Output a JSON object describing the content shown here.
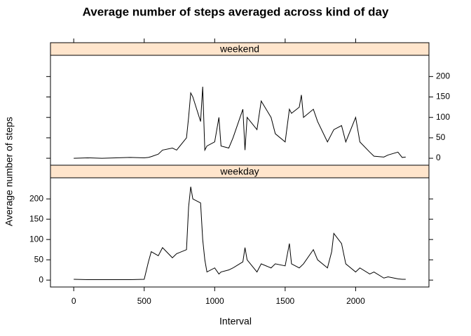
{
  "chart_data": {
    "type": "line",
    "title": "Average number of steps averaged across kind of day",
    "xlabel": "Interval",
    "ylabel": "Average number of steps",
    "x": [
      0,
      100,
      200,
      300,
      400,
      500,
      530,
      550,
      600,
      630,
      700,
      730,
      800,
      815,
      830,
      845,
      900,
      915,
      930,
      945,
      1000,
      1030,
      1045,
      1100,
      1130,
      1200,
      1215,
      1230,
      1300,
      1330,
      1400,
      1430,
      1500,
      1530,
      1545,
      1600,
      1615,
      1630,
      1700,
      1730,
      1800,
      1830,
      1845,
      1900,
      1930,
      2000,
      2015,
      2030,
      2100,
      2130,
      2200,
      2230,
      2300,
      2330,
      2355
    ],
    "series": [
      {
        "name": "weekend",
        "color": "#000000",
        "strip_color": "#ffe5cc",
        "values": [
          0,
          1,
          0,
          1,
          2,
          1,
          2,
          4,
          10,
          20,
          25,
          20,
          50,
          100,
          160,
          150,
          90,
          175,
          20,
          30,
          40,
          100,
          30,
          25,
          50,
          120,
          20,
          100,
          70,
          140,
          100,
          60,
          40,
          120,
          110,
          125,
          155,
          100,
          120,
          90,
          40,
          60,
          70,
          80,
          40,
          100,
          70,
          40,
          15,
          5,
          3,
          8,
          15,
          2,
          3
        ]
      },
      {
        "name": "weekday",
        "color": "#000000",
        "strip_color": "#ffe5cc",
        "values": [
          2,
          1,
          1,
          1,
          1,
          2,
          45,
          70,
          60,
          80,
          55,
          65,
          75,
          180,
          230,
          200,
          190,
          100,
          50,
          20,
          30,
          15,
          20,
          25,
          30,
          45,
          80,
          50,
          20,
          40,
          30,
          40,
          35,
          90,
          40,
          30,
          35,
          40,
          75,
          50,
          30,
          70,
          115,
          90,
          40,
          20,
          25,
          30,
          15,
          20,
          5,
          8,
          3,
          2,
          2
        ]
      }
    ],
    "xlim": [
      -165,
      2520
    ],
    "xticks": [
      0,
      500,
      1000,
      1500,
      2000
    ],
    "ylim": [
      -17,
      252
    ],
    "yticks": [
      0,
      50,
      100,
      150,
      200
    ]
  }
}
